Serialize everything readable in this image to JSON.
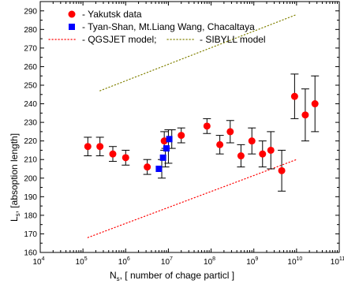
{
  "chart_data": {
    "type": "scatter",
    "title": "",
    "xlabel_main": "N",
    "xlabel_sub": "s",
    "xlabel_rest": ",   [ number of chage particl ]",
    "ylabel_main": "L",
    "ylabel_sub": "s",
    "ylabel_rest": ",  [absoption length]",
    "x_scale": "log",
    "xlim": [
      10000,
      100000000000
    ],
    "ylim": [
      160,
      295
    ],
    "x_ticks": [
      {
        "value": 10000,
        "base": "10",
        "exp": "4"
      },
      {
        "value": 100000,
        "base": "10",
        "exp": "5"
      },
      {
        "value": 1000000,
        "base": "10",
        "exp": "6"
      },
      {
        "value": 10000000,
        "base": "10",
        "exp": "7"
      },
      {
        "value": 100000000,
        "base": "10",
        "exp": "8"
      },
      {
        "value": 1000000000,
        "base": "10",
        "exp": "9"
      },
      {
        "value": 10000000000,
        "base": "10",
        "exp": "10"
      },
      {
        "value": 100000000000,
        "base": "10",
        "exp": "11"
      }
    ],
    "y_ticks": [
      "160",
      "170",
      "180",
      "190",
      "200",
      "210",
      "220",
      "230",
      "240",
      "250",
      "260",
      "270",
      "280",
      "290"
    ],
    "legend_position": "top-left",
    "series": [
      {
        "name": "- Yakutsk data",
        "color": "#ff0000",
        "marker": "circle",
        "points": [
          {
            "x": 130000,
            "y": 217,
            "err": 5
          },
          {
            "x": 250000,
            "y": 217,
            "err": 5
          },
          {
            "x": 500000,
            "y": 213,
            "err": 4
          },
          {
            "x": 1000000,
            "y": 211,
            "err": 4
          },
          {
            "x": 3200000,
            "y": 206,
            "err": 4
          },
          {
            "x": 8000000,
            "y": 220,
            "err": 5
          },
          {
            "x": 20000000,
            "y": 223,
            "err": 4
          },
          {
            "x": 80000000,
            "y": 228,
            "err": 4
          },
          {
            "x": 160000000,
            "y": 218,
            "err": 5
          },
          {
            "x": 280000000,
            "y": 225,
            "err": 6
          },
          {
            "x": 500000000,
            "y": 212,
            "err": 6
          },
          {
            "x": 900000000,
            "y": 220,
            "err": 7
          },
          {
            "x": 1600000000,
            "y": 213,
            "err": 7
          },
          {
            "x": 2500000000,
            "y": 215,
            "err": 10
          },
          {
            "x": 4500000000,
            "y": 204,
            "err": 11
          },
          {
            "x": 9000000000,
            "y": 244,
            "err": 12
          },
          {
            "x": 16000000000,
            "y": 234,
            "err": 14
          },
          {
            "x": 27000000000,
            "y": 240,
            "err": 15
          }
        ]
      },
      {
        "name": "- Tyan-Shan, Mt.Liang Wang, Chacaltaya",
        "color": "#0000ff",
        "marker": "square",
        "points": [
          {
            "x": 6000000,
            "y": 205,
            "err": 0
          },
          {
            "x": 7500000,
            "y": 211,
            "err": 0
          },
          {
            "x": 9000000,
            "y": 216,
            "err": 0
          },
          {
            "x": 10500000,
            "y": 221,
            "err": 0
          }
        ],
        "error_bars": [
          {
            "x": 7000000,
            "y": 205,
            "err": 5
          },
          {
            "x": 8500000,
            "y": 211,
            "err": 5
          },
          {
            "x": 10000000,
            "y": 217,
            "err": 9
          },
          {
            "x": 12000000,
            "y": 221,
            "err": 5
          }
        ]
      },
      {
        "name": "- QGSJET model;",
        "color": "#ff0000",
        "style": "dotted-line",
        "points": [
          {
            "x": 130000,
            "y": 168
          },
          {
            "x": 10000000000,
            "y": 210
          }
        ]
      },
      {
        "name": "- SIBYLL model",
        "color": "#808000",
        "style": "dotted-line",
        "points": [
          {
            "x": 250000,
            "y": 247
          },
          {
            "x": 10000000000,
            "y": 288
          }
        ]
      }
    ]
  }
}
